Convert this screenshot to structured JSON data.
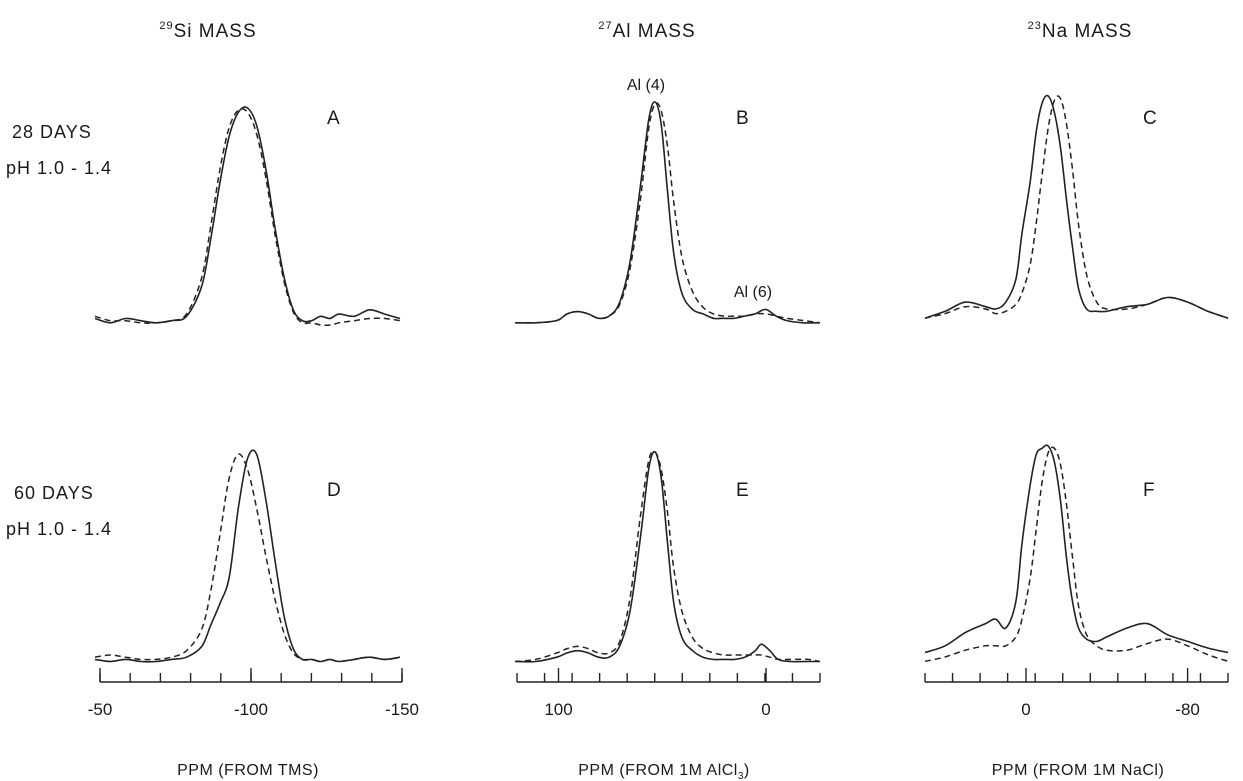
{
  "columns": [
    {
      "sup": "29",
      "title": "Si MASS"
    },
    {
      "sup": "27",
      "title": "Al MASS"
    },
    {
      "sup": "23",
      "title": "Na MASS"
    }
  ],
  "rows": [
    {
      "line1": "28 DAYS",
      "line2": "pH 1.0 - 1.4"
    },
    {
      "line1": "60 DAYS",
      "line2": "pH 1.0 - 1.4"
    }
  ],
  "peak_labels": {
    "al4": "Al (4)",
    "al6": "Al (6)"
  },
  "axes": [
    {
      "label": "PPM (FROM TMS)",
      "label_sub": "",
      "label_tail": ""
    },
    {
      "label": "PPM (FROM 1M  AlCl",
      "label_sub": "3",
      "label_tail": ")"
    },
    {
      "label": "PPM (FROM 1M NaCl)",
      "label_sub": "",
      "label_tail": ""
    }
  ],
  "chart_data": [
    {
      "type": "line",
      "panel": "A",
      "xlim": [
        -50,
        -150
      ],
      "x_reversed": true,
      "series": [
        {
          "style": "solid",
          "x": [
            -50,
            -55,
            -60,
            -65,
            -70,
            -75,
            -80,
            -85,
            -88,
            -91,
            -94,
            -97,
            -100,
            -103,
            -106,
            -109,
            -112,
            -115,
            -118,
            -121,
            -124,
            -127,
            -130,
            -135,
            -140,
            -145,
            -150
          ],
          "y": [
            0.03,
            0.01,
            0.03,
            0.02,
            0.01,
            0.02,
            0.04,
            0.18,
            0.4,
            0.66,
            0.87,
            0.98,
            1.0,
            0.92,
            0.72,
            0.45,
            0.22,
            0.07,
            0.02,
            0.02,
            0.04,
            0.03,
            0.05,
            0.04,
            0.07,
            0.05,
            0.03
          ]
        },
        {
          "style": "dashed",
          "x": [
            -50,
            -55,
            -60,
            -65,
            -70,
            -75,
            -80,
            -85,
            -88,
            -91,
            -94,
            -97,
            -100,
            -103,
            -106,
            -109,
            -112,
            -115,
            -118,
            -121,
            -124,
            -127,
            -130,
            -135,
            -140,
            -145,
            -150
          ],
          "y": [
            0.04,
            0.02,
            0.02,
            0.01,
            0.01,
            0.02,
            0.05,
            0.22,
            0.46,
            0.72,
            0.91,
            0.99,
            0.98,
            0.88,
            0.68,
            0.42,
            0.2,
            0.06,
            0.01,
            0.01,
            0.0,
            0.0,
            0.01,
            0.02,
            0.03,
            0.03,
            0.02
          ]
        }
      ],
      "peak_x": -100
    },
    {
      "type": "line",
      "panel": "B",
      "xlim": [
        120,
        -26
      ],
      "x_reversed": true,
      "series": [
        {
          "style": "solid",
          "x": [
            120,
            110,
            100,
            95,
            90,
            85,
            80,
            75,
            70,
            65,
            60,
            56,
            53,
            50,
            47,
            44,
            40,
            35,
            30,
            25,
            20,
            15,
            10,
            5,
            0,
            -5,
            -10,
            -18,
            -26
          ],
          "y": [
            0.01,
            0.01,
            0.02,
            0.05,
            0.06,
            0.05,
            0.03,
            0.04,
            0.1,
            0.28,
            0.62,
            0.92,
            1.0,
            0.9,
            0.6,
            0.32,
            0.14,
            0.07,
            0.05,
            0.03,
            0.03,
            0.03,
            0.04,
            0.05,
            0.07,
            0.04,
            0.02,
            0.01,
            0.01
          ]
        },
        {
          "style": "dashed",
          "x": [
            120,
            110,
            100,
            95,
            90,
            85,
            80,
            75,
            70,
            65,
            60,
            56,
            53,
            50,
            47,
            44,
            40,
            35,
            30,
            25,
            20,
            15,
            10,
            5,
            0,
            -5,
            -10,
            -18,
            -26
          ],
          "y": [
            0.01,
            0.01,
            0.02,
            0.05,
            0.06,
            0.05,
            0.03,
            0.04,
            0.09,
            0.25,
            0.56,
            0.88,
            0.99,
            0.96,
            0.8,
            0.55,
            0.3,
            0.15,
            0.08,
            0.05,
            0.04,
            0.04,
            0.04,
            0.05,
            0.05,
            0.04,
            0.03,
            0.02,
            0.01
          ]
        }
      ],
      "peak_x": 53,
      "al6_x": 5
    },
    {
      "type": "line",
      "panel": "C",
      "xlim": [
        50,
        -100
      ],
      "x_reversed": true,
      "series": [
        {
          "style": "solid",
          "x": [
            50,
            40,
            30,
            20,
            15,
            10,
            5,
            2,
            -2,
            -5,
            -8,
            -11,
            -14,
            -17,
            -20,
            -23,
            -26,
            -30,
            -35,
            -40,
            -50,
            -60,
            -70,
            -80,
            -90,
            -100
          ],
          "y": [
            0.03,
            0.06,
            0.1,
            0.08,
            0.07,
            0.1,
            0.2,
            0.4,
            0.62,
            0.84,
            0.97,
            1.0,
            0.93,
            0.78,
            0.55,
            0.34,
            0.16,
            0.07,
            0.06,
            0.06,
            0.08,
            0.09,
            0.12,
            0.1,
            0.06,
            0.03
          ]
        },
        {
          "style": "dashed",
          "x": [
            50,
            40,
            30,
            20,
            15,
            10,
            5,
            2,
            -2,
            -5,
            -8,
            -11,
            -14,
            -17,
            -20,
            -23,
            -26,
            -30,
            -35,
            -40,
            -50,
            -60,
            -70,
            -80,
            -90,
            -100
          ],
          "y": [
            0.03,
            0.05,
            0.08,
            0.07,
            0.05,
            0.06,
            0.09,
            0.14,
            0.26,
            0.44,
            0.66,
            0.86,
            0.98,
            0.99,
            0.88,
            0.68,
            0.44,
            0.22,
            0.1,
            0.07,
            0.07,
            0.09,
            0.12,
            0.1,
            0.06,
            0.03
          ]
        }
      ],
      "peak_x": -11
    },
    {
      "type": "line",
      "panel": "D",
      "xlim": [
        -50,
        -150
      ],
      "x_reversed": true,
      "series": [
        {
          "style": "solid",
          "x": [
            -50,
            -55,
            -60,
            -65,
            -70,
            -75,
            -80,
            -85,
            -88,
            -91,
            -94,
            -97,
            -100,
            -103,
            -106,
            -109,
            -112,
            -115,
            -118,
            -121,
            -124,
            -127,
            -130,
            -135,
            -140,
            -145,
            -150
          ],
          "y": [
            0.04,
            0.03,
            0.04,
            0.03,
            0.03,
            0.04,
            0.05,
            0.1,
            0.2,
            0.3,
            0.42,
            0.74,
            0.97,
            0.99,
            0.78,
            0.5,
            0.24,
            0.09,
            0.04,
            0.04,
            0.03,
            0.04,
            0.03,
            0.04,
            0.05,
            0.04,
            0.05
          ]
        },
        {
          "style": "dashed",
          "x": [
            -50,
            -55,
            -60,
            -65,
            -70,
            -75,
            -80,
            -85,
            -88,
            -91,
            -94,
            -97,
            -100,
            -103,
            -106,
            -109,
            -112,
            -115,
            -118,
            -121,
            -124,
            -127,
            -130,
            -135,
            -140,
            -145,
            -150
          ],
          "y": [
            0.05,
            0.06,
            0.05,
            0.04,
            0.04,
            0.05,
            0.08,
            0.18,
            0.36,
            0.62,
            0.88,
            0.99,
            0.92,
            0.74,
            0.52,
            0.32,
            0.16,
            0.07,
            0.04,
            0.04,
            0.03,
            0.04,
            0.03,
            0.04,
            0.05,
            0.04,
            0.05
          ]
        }
      ],
      "peak_x": -102
    },
    {
      "type": "line",
      "panel": "E",
      "xlim": [
        120,
        -26
      ],
      "x_reversed": true,
      "series": [
        {
          "style": "solid",
          "x": [
            120,
            110,
            100,
            95,
            90,
            85,
            80,
            75,
            70,
            65,
            60,
            56,
            53,
            50,
            47,
            44,
            40,
            35,
            30,
            25,
            20,
            15,
            10,
            5,
            2,
            -2,
            -6,
            -12,
            -20,
            -26
          ],
          "y": [
            0.03,
            0.03,
            0.05,
            0.07,
            0.08,
            0.07,
            0.05,
            0.05,
            0.1,
            0.26,
            0.6,
            0.92,
            1.0,
            0.88,
            0.58,
            0.3,
            0.14,
            0.08,
            0.05,
            0.04,
            0.04,
            0.04,
            0.05,
            0.08,
            0.11,
            0.08,
            0.04,
            0.03,
            0.03,
            0.03
          ]
        },
        {
          "style": "dashed",
          "x": [
            120,
            110,
            100,
            95,
            90,
            85,
            80,
            75,
            70,
            65,
            60,
            56,
            53,
            50,
            47,
            44,
            40,
            35,
            30,
            25,
            20,
            15,
            10,
            5,
            2,
            -2,
            -6,
            -12,
            -20,
            -26
          ],
          "y": [
            0.03,
            0.04,
            0.07,
            0.09,
            0.1,
            0.09,
            0.07,
            0.07,
            0.12,
            0.32,
            0.7,
            0.96,
            1.0,
            0.92,
            0.72,
            0.46,
            0.26,
            0.14,
            0.09,
            0.07,
            0.06,
            0.06,
            0.06,
            0.06,
            0.06,
            0.05,
            0.04,
            0.04,
            0.04,
            0.03
          ]
        }
      ],
      "peak_x": 53
    },
    {
      "type": "line",
      "panel": "F",
      "xlim": [
        50,
        -100
      ],
      "x_reversed": true,
      "series": [
        {
          "style": "solid",
          "x": [
            50,
            40,
            30,
            20,
            15,
            10,
            5,
            2,
            -2,
            -5,
            -8,
            -11,
            -14,
            -17,
            -20,
            -23,
            -26,
            -30,
            -35,
            -40,
            -50,
            -60,
            -70,
            -80,
            -90,
            -100
          ],
          "y": [
            0.07,
            0.1,
            0.16,
            0.2,
            0.22,
            0.18,
            0.3,
            0.56,
            0.82,
            0.96,
            0.99,
            1.0,
            0.93,
            0.76,
            0.5,
            0.3,
            0.18,
            0.13,
            0.12,
            0.14,
            0.18,
            0.2,
            0.15,
            0.12,
            0.09,
            0.07
          ]
        },
        {
          "style": "dashed",
          "x": [
            50,
            40,
            30,
            20,
            15,
            10,
            5,
            2,
            -2,
            -5,
            -8,
            -11,
            -14,
            -17,
            -20,
            -23,
            -26,
            -30,
            -35,
            -40,
            -50,
            -60,
            -70,
            -80,
            -90,
            -100
          ],
          "y": [
            0.03,
            0.05,
            0.08,
            0.1,
            0.1,
            0.1,
            0.14,
            0.22,
            0.4,
            0.62,
            0.84,
            0.97,
            0.99,
            0.92,
            0.74,
            0.5,
            0.28,
            0.15,
            0.1,
            0.08,
            0.08,
            0.11,
            0.13,
            0.1,
            0.06,
            0.03
          ]
        }
      ],
      "peak_x": -11
    }
  ],
  "ticks": [
    {
      "labels": [
        {
          "x": -50,
          "text": "-50"
        },
        {
          "x": -100,
          "text": "-100"
        },
        {
          "x": -150,
          "text": "-150"
        }
      ]
    },
    {
      "labels": [
        {
          "x": 100,
          "text": "100"
        },
        {
          "x": 0,
          "text": "0"
        }
      ]
    },
    {
      "labels": [
        {
          "x": 0,
          "text": "0"
        },
        {
          "x": -80,
          "text": "-80"
        }
      ]
    }
  ]
}
